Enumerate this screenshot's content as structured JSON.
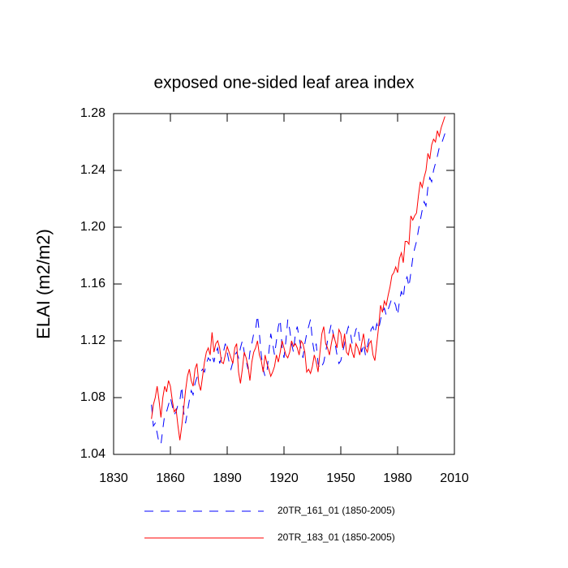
{
  "chart_data": {
    "type": "line",
    "title": "exposed one-sided leaf area index",
    "y_label": "ELAI  (m2/m2)",
    "x": [
      1850,
      1851,
      1852,
      1853,
      1854,
      1855,
      1856,
      1857,
      1858,
      1859,
      1860,
      1861,
      1862,
      1863,
      1864,
      1865,
      1866,
      1867,
      1868,
      1869,
      1870,
      1871,
      1872,
      1873,
      1874,
      1875,
      1876,
      1877,
      1878,
      1879,
      1880,
      1881,
      1882,
      1883,
      1884,
      1885,
      1886,
      1887,
      1888,
      1889,
      1890,
      1891,
      1892,
      1893,
      1894,
      1895,
      1896,
      1897,
      1898,
      1899,
      1900,
      1901,
      1902,
      1903,
      1904,
      1905,
      1906,
      1907,
      1908,
      1909,
      1910,
      1911,
      1912,
      1913,
      1914,
      1915,
      1916,
      1917,
      1918,
      1919,
      1920,
      1921,
      1922,
      1923,
      1924,
      1925,
      1926,
      1927,
      1928,
      1929,
      1930,
      1931,
      1932,
      1933,
      1934,
      1935,
      1936,
      1937,
      1938,
      1939,
      1940,
      1941,
      1942,
      1943,
      1944,
      1945,
      1946,
      1947,
      1948,
      1949,
      1950,
      1951,
      1952,
      1953,
      1954,
      1955,
      1956,
      1957,
      1958,
      1959,
      1960,
      1961,
      1962,
      1963,
      1964,
      1965,
      1966,
      1967,
      1968,
      1969,
      1970,
      1971,
      1972,
      1973,
      1974,
      1975,
      1976,
      1977,
      1978,
      1979,
      1980,
      1981,
      1982,
      1983,
      1984,
      1985,
      1986,
      1987,
      1988,
      1989,
      1990,
      1991,
      1992,
      1993,
      1994,
      1995,
      1996,
      1997,
      1998,
      1999,
      2000,
      2001,
      2002,
      2003,
      2004,
      2005
    ],
    "series": [
      {
        "name": "20TR_161_01 (1850-2005)",
        "color": "#0000ff",
        "line_style": "dashed",
        "values": [
          1.075,
          1.06,
          1.062,
          1.055,
          1.048,
          1.047,
          1.058,
          1.068,
          1.07,
          1.075,
          1.08,
          1.074,
          1.068,
          1.07,
          1.075,
          1.078,
          1.088,
          1.07,
          1.062,
          1.07,
          1.078,
          1.085,
          1.082,
          1.09,
          1.094,
          1.096,
          1.098,
          1.1,
          1.098,
          1.104,
          1.108,
          1.106,
          1.11,
          1.105,
          1.112,
          1.115,
          1.104,
          1.108,
          1.112,
          1.118,
          1.112,
          1.105,
          1.1,
          1.105,
          1.11,
          1.112,
          1.108,
          1.115,
          1.12,
          1.112,
          1.106,
          1.1,
          1.112,
          1.118,
          1.125,
          1.128,
          1.138,
          1.125,
          1.11,
          1.1,
          1.095,
          1.098,
          1.112,
          1.125,
          1.118,
          1.11,
          1.12,
          1.13,
          1.135,
          1.115,
          1.108,
          1.12,
          1.135,
          1.128,
          1.118,
          1.112,
          1.125,
          1.13,
          1.122,
          1.115,
          1.108,
          1.118,
          1.125,
          1.13,
          1.135,
          1.12,
          1.112,
          1.118,
          1.104,
          1.1,
          1.102,
          1.105,
          1.112,
          1.12,
          1.126,
          1.132,
          1.125,
          1.118,
          1.11,
          1.104,
          1.106,
          1.112,
          1.118,
          1.125,
          1.13,
          1.126,
          1.118,
          1.122,
          1.128,
          1.13,
          1.12,
          1.112,
          1.118,
          1.11,
          1.116,
          1.122,
          1.128,
          1.13,
          1.125,
          1.132,
          1.128,
          1.135,
          1.14,
          1.143,
          1.138,
          1.142,
          1.146,
          1.15,
          1.148,
          1.145,
          1.138,
          1.148,
          1.155,
          1.15,
          1.162,
          1.165,
          1.158,
          1.168,
          1.178,
          1.185,
          1.19,
          1.198,
          1.205,
          1.212,
          1.218,
          1.215,
          1.228,
          1.235,
          1.232,
          1.24,
          1.245,
          1.25,
          1.256,
          1.258,
          1.262,
          1.266
        ]
      },
      {
        "name": "20TR_183_01 (1850-2005)",
        "color": "#ff0000",
        "line_style": "solid",
        "values": [
          1.065,
          1.075,
          1.08,
          1.088,
          1.078,
          1.066,
          1.08,
          1.088,
          1.084,
          1.092,
          1.088,
          1.078,
          1.07,
          1.072,
          1.06,
          1.05,
          1.06,
          1.072,
          1.085,
          1.095,
          1.1,
          1.092,
          1.088,
          1.1,
          1.104,
          1.09,
          1.085,
          1.095,
          1.105,
          1.112,
          1.115,
          1.11,
          1.126,
          1.112,
          1.118,
          1.12,
          1.115,
          1.105,
          1.104,
          1.11,
          1.116,
          1.112,
          1.108,
          1.104,
          1.115,
          1.118,
          1.098,
          1.09,
          1.1,
          1.112,
          1.108,
          1.102,
          1.092,
          1.105,
          1.112,
          1.115,
          1.12,
          1.11,
          1.106,
          1.098,
          1.11,
          1.104,
          1.1,
          1.095,
          1.098,
          1.102,
          1.11,
          1.105,
          1.112,
          1.12,
          1.115,
          1.11,
          1.108,
          1.112,
          1.12,
          1.116,
          1.118,
          1.115,
          1.11,
          1.12,
          1.118,
          1.112,
          1.098,
          1.1,
          1.097,
          1.102,
          1.11,
          1.105,
          1.098,
          1.112,
          1.125,
          1.13,
          1.118,
          1.115,
          1.11,
          1.118,
          1.125,
          1.12,
          1.115,
          1.128,
          1.125,
          1.115,
          1.125,
          1.112,
          1.11,
          1.118,
          1.112,
          1.108,
          1.118,
          1.115,
          1.11,
          1.118,
          1.125,
          1.115,
          1.112,
          1.118,
          1.12,
          1.11,
          1.106,
          1.118,
          1.13,
          1.145,
          1.14,
          1.148,
          1.145,
          1.152,
          1.158,
          1.166,
          1.168,
          1.172,
          1.168,
          1.178,
          1.182,
          1.175,
          1.19,
          1.19,
          1.188,
          1.208,
          1.205,
          1.208,
          1.21,
          1.222,
          1.232,
          1.228,
          1.235,
          1.24,
          1.252,
          1.248,
          1.258,
          1.262,
          1.26,
          1.268,
          1.264,
          1.27,
          1.274,
          1.278
        ]
      }
    ],
    "xlim": [
      1830,
      2010
    ],
    "xticks": [
      1830,
      1860,
      1890,
      1920,
      1950,
      1980,
      2010
    ],
    "ylim": [
      1.04,
      1.28
    ],
    "yticks": [
      1.04,
      1.08,
      1.12,
      1.16,
      {
        "value": 1.2,
        "label": "1.20"
      },
      1.24,
      1.28
    ],
    "grid": false,
    "legend": "bottom"
  }
}
